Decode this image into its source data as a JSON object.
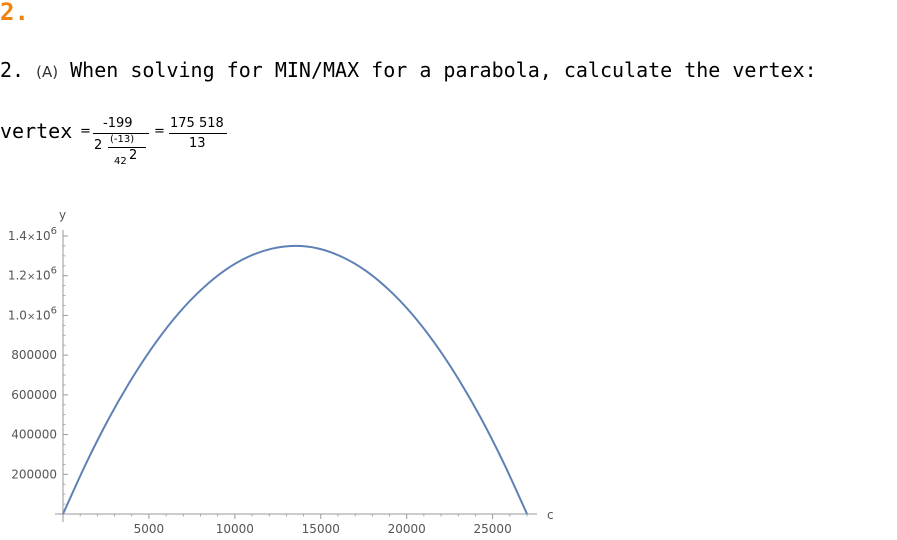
{
  "heading": {
    "number": "2."
  },
  "problem": {
    "prefix": "2. ",
    "part_label": "(A)",
    "text": " When solving for MIN/MAX for a parabola, calculate the vertex:"
  },
  "formula": {
    "lhs": "vertex",
    "eq1": "=",
    "numerator": "-199",
    "den_coef": "2",
    "den_inner_num": "(-13)",
    "den_inner_den_base": "42",
    "den_inner_den_exp": "2",
    "eq2": "=",
    "result_num": "175 518",
    "result_den": "13"
  },
  "chart_data": {
    "type": "line",
    "title": "",
    "xlabel": "c",
    "ylabel": "y",
    "xlim": [
      0,
      27000
    ],
    "ylim": [
      0,
      1400000
    ],
    "x_ticks": [
      5000,
      10000,
      15000,
      20000,
      25000
    ],
    "x_tick_labels": [
      "5000",
      "10000",
      "15000",
      "20000",
      "25000"
    ],
    "y_ticks": [
      200000,
      400000,
      600000,
      800000,
      1000000,
      1200000,
      1400000
    ],
    "y_tick_labels": [
      {
        "text": "200000"
      },
      {
        "text": "400000"
      },
      {
        "text": "600000"
      },
      {
        "text": "800000"
      },
      {
        "mantissa": "1.0",
        "times": "×",
        "base": "10",
        "exp": "6"
      },
      {
        "mantissa": "1.2",
        "times": "×",
        "base": "10",
        "exp": "6"
      },
      {
        "mantissa": "1.4",
        "times": "×",
        "base": "10",
        "exp": "6"
      }
    ],
    "series": [
      {
        "color": "#5e81b5",
        "x": [
          0,
          1350,
          2700,
          4050,
          5400,
          6750,
          8100,
          9450,
          10800,
          12150,
          13501,
          14850,
          16200,
          17550,
          18900,
          20250,
          21600,
          22950,
          24300,
          25650,
          27002
        ],
        "y": [
          0,
          256000,
          486000,
          688000,
          864000,
          1013000,
          1134000,
          1229000,
          1296000,
          1336000,
          1350000,
          1337000,
          1296000,
          1229000,
          1134000,
          1013000,
          864000,
          688000,
          486000,
          256000,
          0
        ]
      }
    ],
    "grid": false,
    "legend": "none"
  }
}
